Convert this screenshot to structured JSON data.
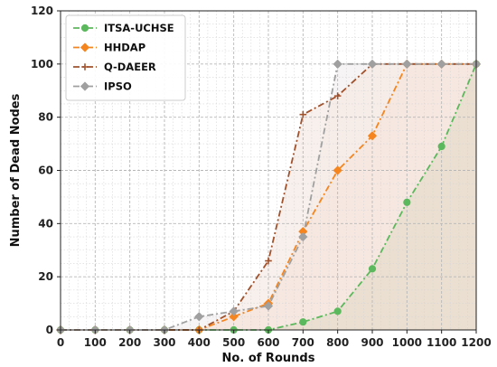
{
  "chart_data": {
    "type": "line",
    "xlabel": "No. of Rounds",
    "ylabel": "Number of Dead Nodes",
    "xlim": [
      0,
      1200
    ],
    "ylim": [
      0,
      120
    ],
    "x_ticks": [
      0,
      100,
      200,
      300,
      400,
      500,
      600,
      700,
      800,
      900,
      1000,
      1100,
      1200
    ],
    "y_ticks": [
      0,
      20,
      40,
      60,
      80,
      100,
      120
    ],
    "grid": true,
    "legend_position": "top-left",
    "x": [
      0,
      100,
      200,
      300,
      400,
      500,
      600,
      700,
      800,
      900,
      1000,
      1100,
      1200
    ],
    "series": [
      {
        "name": "ITSA-UCHSE",
        "color": "#5cb85c",
        "marker": "circle",
        "fill": "#e6dccb",
        "values": [
          0,
          0,
          0,
          0,
          0,
          0,
          0,
          3,
          7,
          23,
          48,
          69,
          100
        ]
      },
      {
        "name": "HHDAP",
        "color": "#f5851f",
        "marker": "diamond",
        "fill": "#f6e4dc",
        "values": [
          0,
          0,
          0,
          0,
          0,
          5,
          10,
          37,
          60,
          73,
          100,
          100,
          100
        ]
      },
      {
        "name": "Q-DAEER",
        "color": "#a0522d",
        "marker": "plus",
        "fill": "#f6ebe6",
        "values": [
          0,
          0,
          0,
          0,
          0,
          7,
          26,
          81,
          88,
          100,
          100,
          100,
          100
        ]
      },
      {
        "name": "IPSO",
        "color": "#a0a0a0",
        "marker": "diamond",
        "fill": "#f3f0f0",
        "values": [
          0,
          0,
          0,
          0,
          5,
          7,
          9,
          35,
          100,
          100,
          100,
          100,
          100
        ]
      }
    ]
  }
}
